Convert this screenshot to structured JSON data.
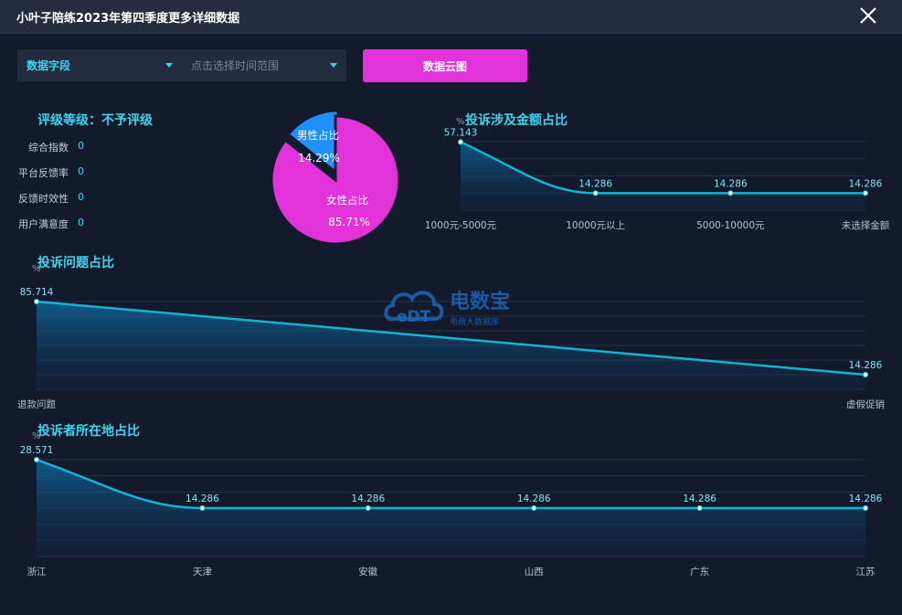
{
  "window": {
    "title": "小叶子陪练2023年第四季度更多详细数据"
  },
  "filters": {
    "field": {
      "label": "数据字段"
    },
    "range": {
      "placeholder": "点击选择时间范围"
    },
    "cloud_button": "数据云图"
  },
  "rating": {
    "title": "评级等级：不予评级",
    "metrics": [
      {
        "label": "综合指数",
        "value": "0"
      },
      {
        "label": "平台反馈率",
        "value": "0"
      },
      {
        "label": "反馈时效性",
        "value": "0"
      },
      {
        "label": "用户满意度",
        "value": "0"
      }
    ]
  },
  "watermark": {
    "main": "电数宝",
    "sub": "电商大数据库",
    "logo": "eDT"
  },
  "colors": {
    "accent": "#3fd3ee",
    "male": "#1e90ff",
    "female": "#e233db",
    "line": "#14b3d6"
  },
  "chart_data": [
    {
      "type": "pie",
      "slices": [
        {
          "name": "男性占比",
          "label": "14.29%",
          "value": 14.29
        },
        {
          "name": "女性占比",
          "label": "85.71%",
          "value": 85.71
        }
      ]
    },
    {
      "type": "area",
      "title": "投诉涉及金额占比",
      "unit": "%",
      "categories": [
        "1000元-5000元",
        "10000元以上",
        "5000-10000元",
        "未选择金额"
      ],
      "values": [
        57.143,
        14.286,
        14.286,
        14.286
      ],
      "value_labels": [
        "57.143",
        "14.286",
        "14.286",
        "14.286"
      ]
    },
    {
      "type": "area",
      "title": "投诉问题占比",
      "unit": "%",
      "categories": [
        "退款问题",
        "虚假促销"
      ],
      "values": [
        85.714,
        14.286
      ],
      "value_labels": [
        "85.714",
        "14.286"
      ]
    },
    {
      "type": "area",
      "title": "投诉者所在地占比",
      "unit": "%",
      "categories": [
        "浙江",
        "天津",
        "安徽",
        "山西",
        "广东",
        "江苏"
      ],
      "values": [
        28.571,
        14.286,
        14.286,
        14.286,
        14.286,
        14.286
      ],
      "value_labels": [
        "28.571",
        "14.286",
        "14.286",
        "14.286",
        "14.286",
        "14.286"
      ]
    }
  ]
}
